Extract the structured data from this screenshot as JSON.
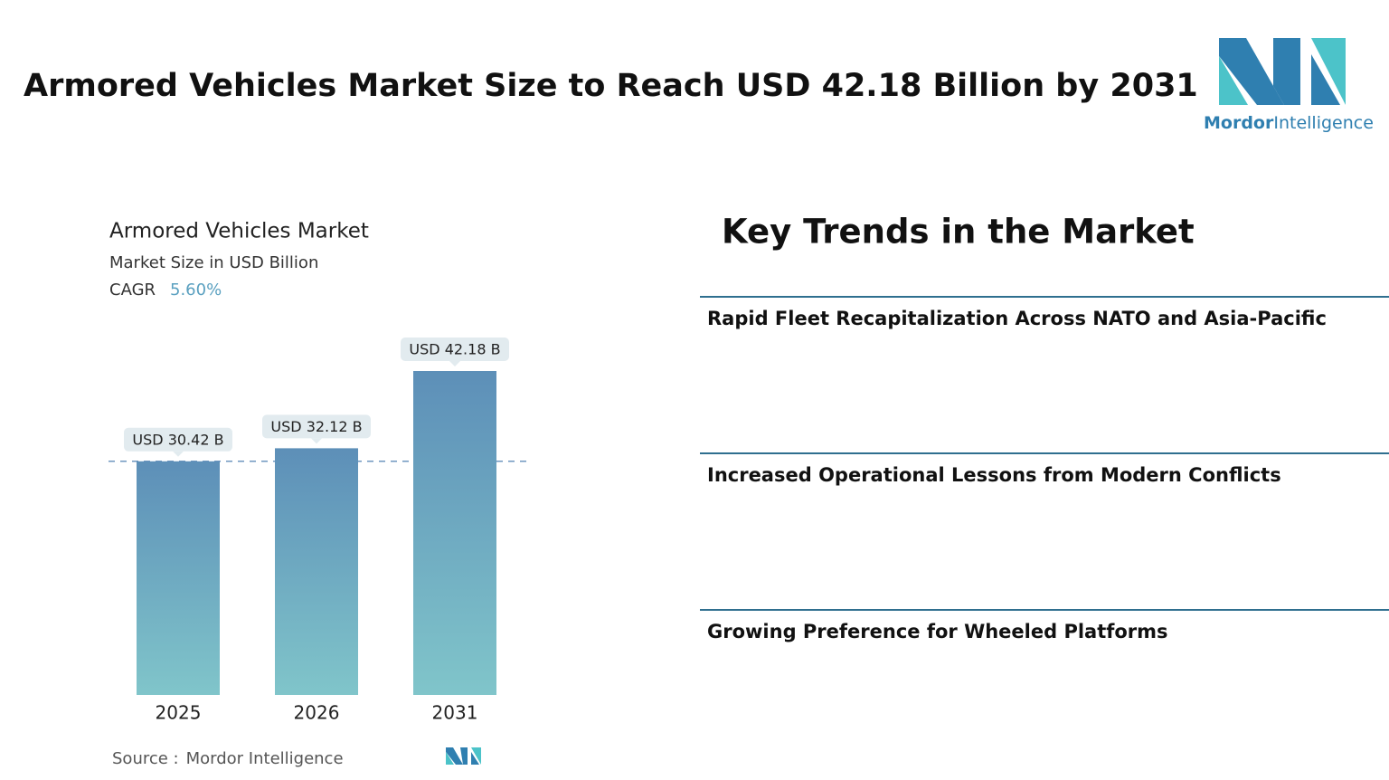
{
  "header": {
    "title": "Armored Vehicles Market Size to Reach USD 42.18 Billion by 2031",
    "logo": {
      "brand_bold": "Mordor",
      "brand_light": "Intelligence"
    }
  },
  "chart_data": {
    "type": "bar",
    "title": "Armored Vehicles Market",
    "subtitle": "Market Size in USD Billion",
    "cagr_label": "CAGR",
    "cagr": "5.60%",
    "categories": [
      "2025",
      "2026",
      "2031"
    ],
    "values": [
      30.42,
      32.12,
      42.18
    ],
    "value_labels": [
      "USD 30.42 B",
      "USD 32.12 B",
      "USD 42.18 B"
    ],
    "color": "#5d8fb8"
  },
  "trends": {
    "title": "Key Trends in the Market",
    "items": [
      "Rapid Fleet Recapitalization Across NATO and Asia-Pacific",
      "Increased Operational Lessons from Modern Conflicts",
      "Growing Preference for Wheeled Platforms"
    ]
  },
  "source": {
    "label": "Source :",
    "text": "Mordor Intelligence"
  }
}
